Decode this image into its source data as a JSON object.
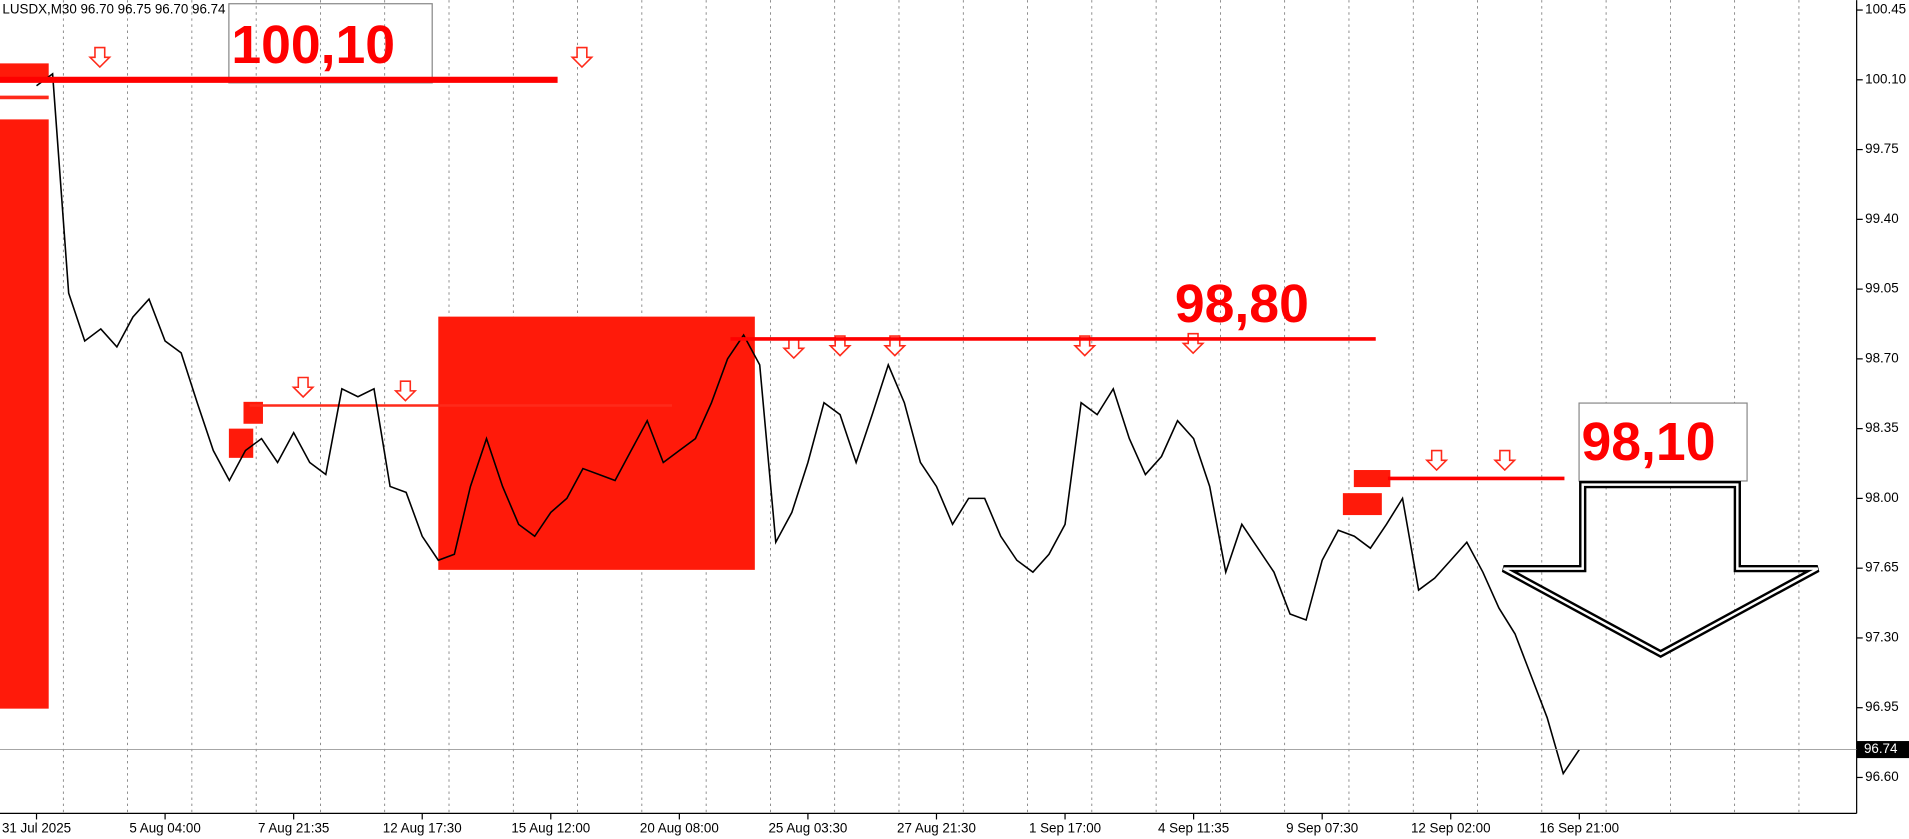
{
  "chart_data": {
    "type": "line",
    "title": "LUSDX,M30  96.70 96.75 96.70 96.74",
    "categories": [
      "31 Jul 2025",
      null,
      null,
      null,
      null,
      null,
      null,
      null,
      "5 Aug 04:00",
      null,
      null,
      null,
      null,
      null,
      null,
      null,
      "7 Aug 21:35",
      null,
      null,
      null,
      null,
      null,
      null,
      null,
      "12 Aug 17:30",
      null,
      null,
      null,
      null,
      null,
      null,
      null,
      "15 Aug 12:00",
      null,
      null,
      null,
      null,
      null,
      null,
      null,
      "20 Aug 08:00",
      null,
      null,
      null,
      null,
      null,
      null,
      null,
      "25 Aug 03:30",
      null,
      null,
      null,
      null,
      null,
      null,
      null,
      "27 Aug 21:30",
      null,
      null,
      null,
      null,
      null,
      null,
      null,
      "1 Sep 17:00",
      null,
      null,
      null,
      null,
      null,
      null,
      null,
      "4 Sep 11:35",
      null,
      null,
      null,
      null,
      null,
      null,
      null,
      "9 Sep 07:30",
      null,
      null,
      null,
      null,
      null,
      null,
      null,
      "12 Sep 02:00",
      null,
      null,
      null,
      null,
      null,
      null,
      null,
      "16 Sep 21:00"
    ],
    "values": [
      100.07,
      100.13,
      99.03,
      98.79,
      98.85,
      98.76,
      98.91,
      99.0,
      98.79,
      98.73,
      98.48,
      98.24,
      98.09,
      98.24,
      98.3,
      98.18,
      98.33,
      98.18,
      98.12,
      98.55,
      98.51,
      98.55,
      98.06,
      98.03,
      97.81,
      97.69,
      97.72,
      98.06,
      98.3,
      98.06,
      97.87,
      97.81,
      97.93,
      98.0,
      98.15,
      98.12,
      98.09,
      98.24,
      98.39,
      98.18,
      98.24,
      98.3,
      98.48,
      98.7,
      98.82,
      98.67,
      97.78,
      97.93,
      98.18,
      98.48,
      98.42,
      98.18,
      98.42,
      98.67,
      98.48,
      98.18,
      98.06,
      97.87,
      98.0,
      98.0,
      97.81,
      97.69,
      97.63,
      97.72,
      97.87,
      98.48,
      98.42,
      98.55,
      98.3,
      98.12,
      98.21,
      98.39,
      98.3,
      98.06,
      97.63,
      97.87,
      97.75,
      97.63,
      97.42,
      97.39,
      97.69,
      97.84,
      97.81,
      97.75,
      97.87,
      98.0,
      97.54,
      97.6,
      97.69,
      97.78,
      97.63,
      97.45,
      97.32,
      97.11,
      96.9,
      96.62,
      96.74
    ],
    "color": "#000000",
    "ylim": [
      96.42,
      100.5
    ],
    "yticks": [
      100.45,
      {
        "value": 100.1,
        "label": "100.10"
      },
      99.75,
      {
        "value": 99.4,
        "label": "99.40"
      },
      99.05,
      {
        "value": 98.7,
        "label": "98.70"
      },
      98.35,
      {
        "value": 98.0,
        "label": "98.00"
      },
      97.65,
      {
        "value": 97.3,
        "label": "97.30"
      },
      96.95,
      {
        "value": 96.6,
        "label": "96.60"
      }
    ],
    "last_price": 96.74,
    "annotations": [
      {
        "text": "100,10",
        "value": 100.1
      },
      {
        "text": "98,80",
        "value": 98.8
      },
      {
        "text": "98,10",
        "value": 98.1
      }
    ],
    "annotation_color": "#ff0000"
  }
}
